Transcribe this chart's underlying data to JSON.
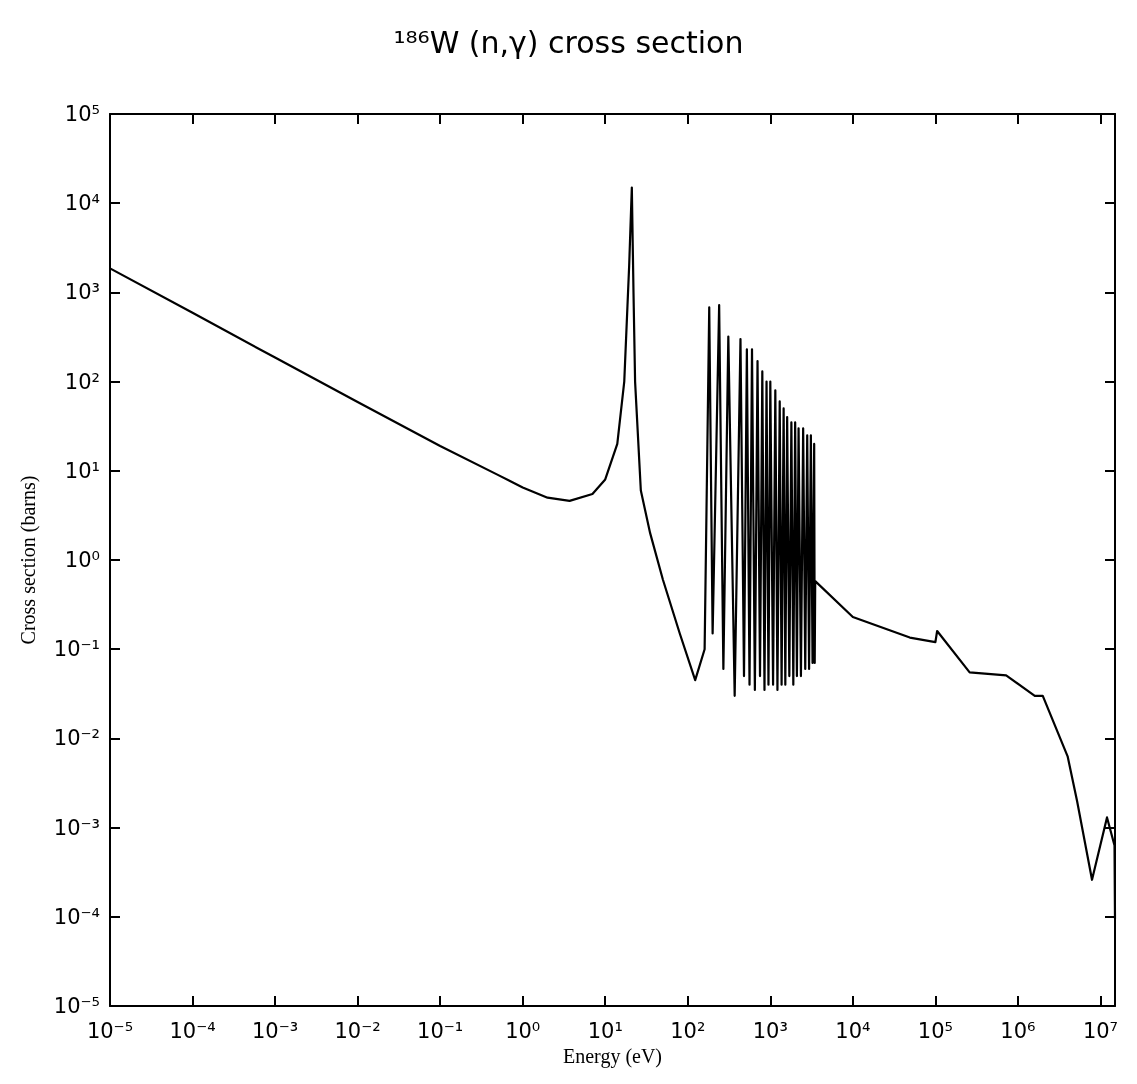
{
  "chart_data": {
    "type": "line",
    "title": "¹⁸⁶W (n,γ) cross section",
    "xlabel": "Energy (eV)",
    "ylabel": "Cross section (barns)",
    "log": "xy",
    "xlim": [
      1e-05,
      15000000.0
    ],
    "xticks": [
      {
        "value": 1e-05,
        "label": "10⁻⁵"
      },
      {
        "value": 0.0001,
        "label": "10⁻⁴"
      },
      {
        "value": 0.001,
        "label": "10⁻³"
      },
      {
        "value": 0.01,
        "label": "10⁻²"
      },
      {
        "value": 0.1,
        "label": "10⁻¹"
      },
      {
        "value": 1,
        "label": "10⁰"
      },
      {
        "value": 10,
        "label": "10¹"
      },
      {
        "value": 100,
        "label": "10²"
      },
      {
        "value": 1000,
        "label": "10³"
      },
      {
        "value": 10000,
        "label": "10⁴"
      },
      {
        "value": 100000,
        "label": "10⁵"
      },
      {
        "value": 1000000,
        "label": "10⁶"
      },
      {
        "value": 10000000,
        "label": "10⁷"
      }
    ],
    "ylim": [
      1e-05,
      100000.0
    ],
    "yticks": [
      {
        "value": 1e-05,
        "label": "10⁻⁵"
      },
      {
        "value": 0.0001,
        "label": "10⁻⁴"
      },
      {
        "value": 0.001,
        "label": "10⁻³"
      },
      {
        "value": 0.01,
        "label": "10⁻²"
      },
      {
        "value": 0.1,
        "label": "10⁻¹"
      },
      {
        "value": 1,
        "label": "10⁰"
      },
      {
        "value": 10,
        "label": "10¹"
      },
      {
        "value": 100,
        "label": "10²"
      },
      {
        "value": 1000,
        "label": "10³"
      },
      {
        "value": 10000,
        "label": "10⁴"
      },
      {
        "value": 100000,
        "label": "10⁵"
      }
    ],
    "series": [
      {
        "color": "#000000",
        "x": [
          1e-05,
          0.0001,
          0.001,
          0.01,
          0.1,
          0.5,
          1,
          2,
          3.7,
          7,
          10,
          14,
          17,
          19.5,
          21,
          22,
          23,
          27,
          35,
          50,
          80,
          123,
          160,
          182,
          200,
          240,
          270,
          310,
          370,
          435,
          480,
          520,
          560,
          600,
          650,
          700,
          750,
          800,
          850,
          900,
          950,
          1000,
          1080,
          1150,
          1220,
          1300,
          1370,
          1450,
          1520,
          1600,
          1700,
          1800,
          1900,
          2000,
          2100,
          2200,
          2350,
          2500,
          2650,
          2800,
          2950,
          3100,
          3250,
          3400,
          3450,
          3500,
          10000,
          49000,
          100000,
          105000,
          260000,
          720000,
          1600000,
          2000000,
          4000000,
          5200000,
          7900000,
          12000000,
          14800000,
          15000000
        ],
        "values": [
          1860,
          590,
          186,
          59,
          19,
          9,
          6.5,
          5,
          4.6,
          5.5,
          8,
          20,
          100,
          2000,
          15000,
          1000,
          100,
          6,
          2,
          0.6,
          0.15,
          0.045,
          0.1,
          680,
          0.15,
          720,
          0.06,
          320,
          0.03,
          300,
          0.05,
          230,
          0.04,
          230,
          0.035,
          170,
          0.05,
          130,
          0.035,
          100,
          0.04,
          100,
          0.04,
          80,
          0.035,
          60,
          0.04,
          50,
          0.04,
          40,
          0.05,
          35,
          0.04,
          35,
          0.05,
          30,
          0.05,
          30,
          0.06,
          25,
          0.06,
          25,
          0.07,
          20,
          0.07,
          0.58,
          0.23,
          0.135,
          0.12,
          0.16,
          0.055,
          0.051,
          0.03,
          0.03,
          0.0063,
          0.002,
          0.00026,
          0.0013,
          0.00063,
          9.5e-05
        ]
      }
    ]
  }
}
